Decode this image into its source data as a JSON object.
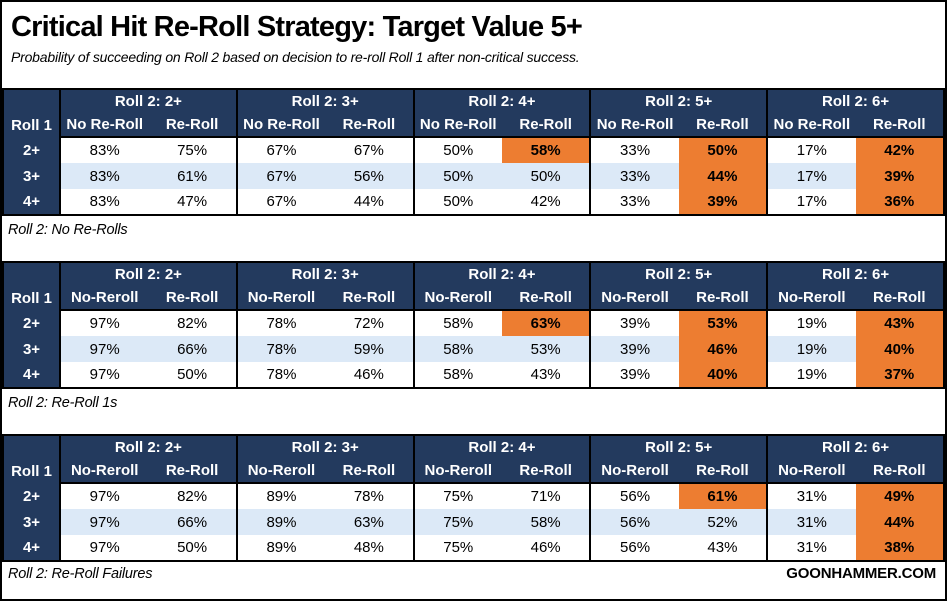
{
  "title": "Critical Hit Re-Roll Strategy: Target Value 5+",
  "subtitle": "Probability of succeeding on Roll 2 based on decision to re-roll Roll 1 after non-critical success.",
  "brand": "GOONHAMMER.COM",
  "colors": {
    "header_navy": "#233A5E",
    "highlight_orange": "#ED7D31",
    "stripe_blue": "#DCE9F7",
    "border_black": "#000000"
  },
  "chart_data": [
    {
      "type": "table",
      "caption": "Roll 2: No Re-Rolls",
      "row_header_label": "Roll 1",
      "groups": [
        "Roll 2: 2+",
        "Roll 2: 3+",
        "Roll 2: 4+",
        "Roll 2: 5+",
        "Roll 2: 6+"
      ],
      "sub_headers": [
        "No Re-Roll",
        "Re-Roll"
      ],
      "rows": [
        {
          "label": "2+",
          "values": [
            "83%",
            "75%",
            "67%",
            "67%",
            "50%",
            "58%",
            "33%",
            "50%",
            "17%",
            "42%"
          ],
          "highlight": [
            5,
            7,
            9
          ]
        },
        {
          "label": "3+",
          "values": [
            "83%",
            "61%",
            "67%",
            "56%",
            "50%",
            "50%",
            "33%",
            "44%",
            "17%",
            "39%"
          ],
          "highlight": [
            7,
            9
          ]
        },
        {
          "label": "4+",
          "values": [
            "83%",
            "47%",
            "67%",
            "44%",
            "50%",
            "42%",
            "33%",
            "39%",
            "17%",
            "36%"
          ],
          "highlight": [
            7,
            9
          ]
        }
      ]
    },
    {
      "type": "table",
      "caption": "Roll 2: Re-Roll 1s",
      "row_header_label": "Roll 1",
      "groups": [
        "Roll 2: 2+",
        "Roll 2: 3+",
        "Roll 2: 4+",
        "Roll 2: 5+",
        "Roll 2: 6+"
      ],
      "sub_headers": [
        "No-Reroll",
        "Re-Roll"
      ],
      "rows": [
        {
          "label": "2+",
          "values": [
            "97%",
            "82%",
            "78%",
            "72%",
            "58%",
            "63%",
            "39%",
            "53%",
            "19%",
            "43%"
          ],
          "highlight": [
            5,
            7,
            9
          ]
        },
        {
          "label": "3+",
          "values": [
            "97%",
            "66%",
            "78%",
            "59%",
            "58%",
            "53%",
            "39%",
            "46%",
            "19%",
            "40%"
          ],
          "highlight": [
            7,
            9
          ]
        },
        {
          "label": "4+",
          "values": [
            "97%",
            "50%",
            "78%",
            "46%",
            "58%",
            "43%",
            "39%",
            "40%",
            "19%",
            "37%"
          ],
          "highlight": [
            7,
            9
          ]
        }
      ]
    },
    {
      "type": "table",
      "caption": "Roll 2: Re-Roll Failures",
      "row_header_label": "Roll 1",
      "groups": [
        "Roll 2: 2+",
        "Roll 2: 3+",
        "Roll 2: 4+",
        "Roll 2: 5+",
        "Roll 2: 6+"
      ],
      "sub_headers": [
        "No-Reroll",
        "Re-Roll"
      ],
      "rows": [
        {
          "label": "2+",
          "values": [
            "97%",
            "82%",
            "89%",
            "78%",
            "75%",
            "71%",
            "56%",
            "61%",
            "31%",
            "49%"
          ],
          "highlight": [
            7,
            9
          ]
        },
        {
          "label": "3+",
          "values": [
            "97%",
            "66%",
            "89%",
            "63%",
            "75%",
            "58%",
            "56%",
            "52%",
            "31%",
            "44%"
          ],
          "highlight": [
            9
          ]
        },
        {
          "label": "4+",
          "values": [
            "97%",
            "50%",
            "89%",
            "48%",
            "75%",
            "46%",
            "56%",
            "43%",
            "31%",
            "38%"
          ],
          "highlight": [
            9
          ]
        }
      ]
    }
  ]
}
